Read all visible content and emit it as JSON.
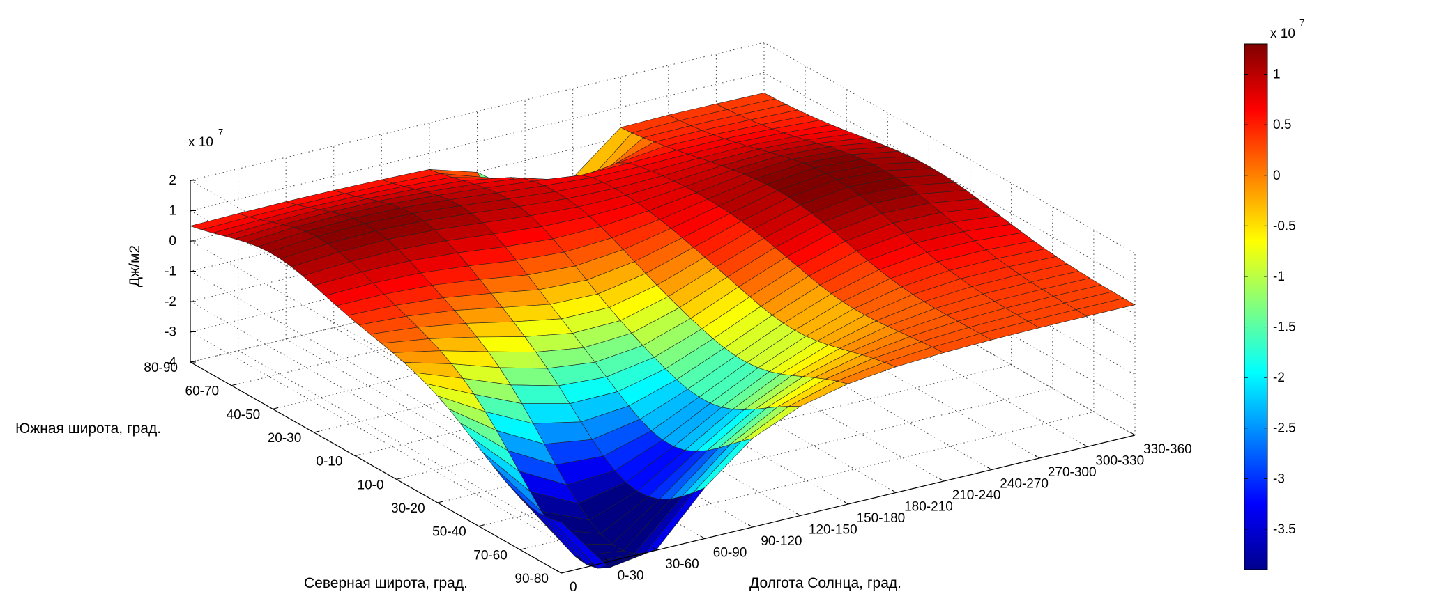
{
  "chart_data": {
    "type": "surface",
    "zlabel": "Дж/м2",
    "z_scale_label": "x 10",
    "z_scale_exponent": "7",
    "zlim": [
      -4,
      2
    ],
    "z_ticks": [
      "2",
      "1",
      "0",
      "-1",
      "-2",
      "-3",
      "-4"
    ],
    "lat_axis_label_south": "Южная широта, град.",
    "lat_axis_label_north": "Северная широта, град.",
    "lat_ticks": [
      "80-90",
      "60-70",
      "40-50",
      "20-30",
      "0-10",
      "10-0",
      "30-20",
      "50-40",
      "70-60",
      "90-80"
    ],
    "lon_axis_label": "Долгота Солнца, град.",
    "lon_ticks": [
      "0",
      "0-30",
      "30-60",
      "60-90",
      "90-120",
      "120-150",
      "150-180",
      "180-210",
      "210-240",
      "240-270",
      "270-300",
      "300-330",
      "330-360"
    ],
    "colorbar": {
      "scale_label": "x 10",
      "scale_exponent": "7",
      "ticks": [
        "1",
        "0.5",
        "0",
        "-0.5",
        "-1",
        "-1.5",
        "-2",
        "-2.5",
        "-3",
        "-3.5"
      ],
      "range": [
        -3.9,
        1.3
      ],
      "colormap": "jet"
    },
    "surface_description": "values in units of 1e7 J/m2; rows = latitude bins from 80-90 S to 90-80 N, columns = solar longitude bins",
    "grid": true
  }
}
